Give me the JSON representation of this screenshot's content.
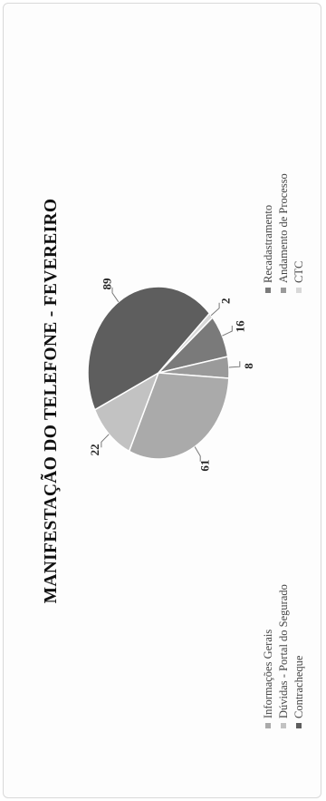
{
  "chart_data": {
    "type": "pie",
    "title": "MANIFESTAÇÃO DO TELEFONE - FEVEREIRO",
    "categories": [
      "Informações Gerais",
      "Dúvidas - Portal do Segurado",
      "Contracheque",
      "Recadastramento",
      "Andamento de Processo",
      "CTC"
    ],
    "values": [
      61,
      22,
      89,
      16,
      8,
      2
    ],
    "slice_order": [
      "Recadastramento",
      "Andamento de Processo",
      "Informações Gerais",
      "Dúvidas - Portal do Segurado",
      "Contracheque",
      "CTC"
    ],
    "colors": {
      "Informações Gerais": "#aaaaaa",
      "Dúvidas - Portal do Segurado": "#c2c2c2",
      "Contracheque": "#5e5e5e",
      "Recadastramento": "#7a7a7a",
      "Andamento de Processo": "#9a9a9a",
      "CTC": "#d8d8d8"
    },
    "legend_position": "bottom",
    "orientation": "rotated-90-ccw"
  }
}
